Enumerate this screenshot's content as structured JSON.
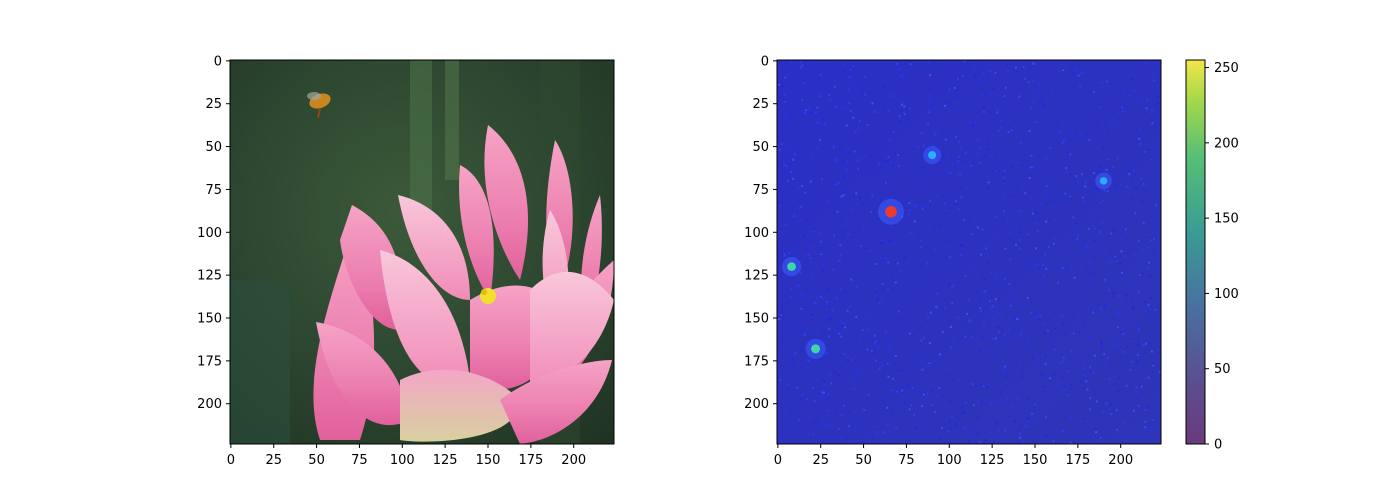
{
  "chart_data": [
    {
      "type": "image",
      "description_tag": "photo",
      "xlim": [
        0,
        224
      ],
      "ylim": [
        224,
        0
      ],
      "xticks": [
        0,
        25,
        50,
        75,
        100,
        125,
        150,
        175,
        200
      ],
      "yticks": [
        0,
        25,
        50,
        75,
        100,
        125,
        150,
        175,
        200
      ],
      "xtick_labels": [
        "0",
        "25",
        "50",
        "75",
        "100",
        "125",
        "150",
        "175",
        "200"
      ],
      "ytick_labels": [
        "0",
        "25",
        "50",
        "75",
        "100",
        "125",
        "150",
        "175",
        "200"
      ]
    },
    {
      "type": "heatmap",
      "xlim": [
        0,
        224
      ],
      "ylim": [
        224,
        0
      ],
      "xticks": [
        0,
        25,
        50,
        75,
        100,
        125,
        150,
        175,
        200
      ],
      "yticks": [
        0,
        25,
        50,
        75,
        100,
        125,
        150,
        175,
        200
      ],
      "xtick_labels": [
        "0",
        "25",
        "50",
        "75",
        "100",
        "125",
        "150",
        "175",
        "200"
      ],
      "ytick_labels": [
        "0",
        "25",
        "50",
        "75",
        "100",
        "125",
        "150",
        "175",
        "200"
      ],
      "colormap": "jet",
      "hotspots": [
        {
          "x": 66,
          "y": 88,
          "value": 210
        },
        {
          "x": 22,
          "y": 168,
          "value": 120
        },
        {
          "x": 8,
          "y": 120,
          "value": 110
        },
        {
          "x": 90,
          "y": 55,
          "value": 90
        },
        {
          "x": 190,
          "y": 70,
          "value": 70
        }
      ],
      "colorbar": {
        "colormap": "viridis",
        "range": [
          0,
          255
        ],
        "ticks": [
          0,
          50,
          100,
          150,
          200,
          250
        ],
        "tick_labels": [
          "0",
          "50",
          "100",
          "150",
          "200",
          "250"
        ]
      }
    }
  ]
}
